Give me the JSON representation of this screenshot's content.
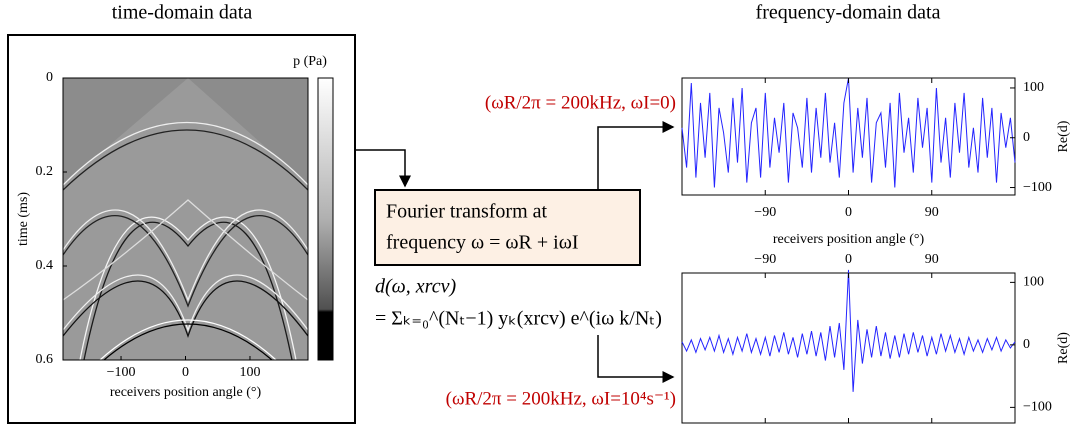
{
  "chart_data": [
    {
      "type": "image",
      "title": "time-domain data",
      "xlabel": "receivers position angle (°)",
      "ylabel": "time (ms)",
      "colorbar_label": "p (Pa)",
      "xlim": [
        -190,
        190
      ],
      "ylim": [
        0,
        0.6
      ],
      "xticks": [
        {
          "value": -100,
          "label": "−100"
        },
        0,
        100
      ],
      "yticks": [
        0,
        0.2,
        0.4,
        0.6
      ]
    },
    {
      "type": "line",
      "xlabel": "receivers position angle (°)",
      "ylabel": "Re(d)",
      "color": "#2424ff",
      "xlim": [
        -180,
        180
      ],
      "ylim": [
        -115,
        120
      ],
      "xtick_side": "bottom",
      "xticks": [
        {
          "value": -90,
          "label": "−90"
        },
        0,
        90
      ],
      "yticks": [
        {
          "value": -100,
          "label": "−100"
        },
        0,
        100
      ],
      "x": [
        -180,
        -175,
        -170,
        -165,
        -160,
        -155,
        -150,
        -145,
        -140,
        -135,
        -130,
        -125,
        -120,
        -115,
        -110,
        -105,
        -100,
        -95,
        -90,
        -85,
        -80,
        -75,
        -70,
        -65,
        -60,
        -55,
        -50,
        -45,
        -40,
        -35,
        -30,
        -25,
        -20,
        -15,
        -10,
        -5,
        0,
        5,
        10,
        15,
        20,
        25,
        30,
        35,
        40,
        45,
        50,
        55,
        60,
        65,
        70,
        75,
        80,
        85,
        90,
        95,
        100,
        105,
        110,
        115,
        120,
        125,
        130,
        135,
        140,
        145,
        150,
        155,
        160,
        165,
        170,
        175,
        180
      ],
      "values": [
        20,
        -60,
        110,
        -80,
        70,
        -40,
        90,
        -100,
        60,
        10,
        -70,
        80,
        -50,
        100,
        -90,
        30,
        60,
        -80,
        90,
        -60,
        40,
        -30,
        70,
        -90,
        50,
        20,
        -60,
        80,
        -70,
        60,
        -40,
        90,
        -50,
        30,
        -80,
        70,
        120,
        -70,
        60,
        -40,
        80,
        -90,
        30,
        50,
        -60,
        70,
        -100,
        90,
        -30,
        40,
        -70,
        80,
        -20,
        60,
        -90,
        100,
        -50,
        40,
        -80,
        70,
        -30,
        90,
        -60,
        20,
        -70,
        80,
        -40,
        60,
        -90,
        50,
        -20,
        40,
        -50
      ]
    },
    {
      "type": "line",
      "ylabel": "Re(d)",
      "color": "#2424ff",
      "xlim": [
        -180,
        180
      ],
      "ylim": [
        -125,
        115
      ],
      "xtick_side": "top",
      "xticks": [
        {
          "value": -90,
          "label": "−90"
        },
        0,
        90
      ],
      "yticks": [
        {
          "value": -100,
          "label": "−100"
        },
        0,
        100
      ],
      "x": [
        -180,
        -175,
        -170,
        -165,
        -160,
        -155,
        -150,
        -145,
        -140,
        -135,
        -130,
        -125,
        -120,
        -115,
        -110,
        -105,
        -100,
        -95,
        -90,
        -85,
        -80,
        -75,
        -70,
        -65,
        -60,
        -55,
        -50,
        -45,
        -40,
        -35,
        -30,
        -25,
        -20,
        -15,
        -10,
        -5,
        0,
        5,
        10,
        15,
        20,
        25,
        30,
        35,
        40,
        45,
        50,
        55,
        60,
        65,
        70,
        75,
        80,
        85,
        90,
        95,
        100,
        105,
        110,
        115,
        120,
        125,
        130,
        135,
        140,
        145,
        150,
        155,
        160,
        165,
        170,
        175,
        180
      ],
      "values": [
        5,
        -10,
        8,
        -12,
        10,
        -8,
        12,
        -10,
        15,
        -12,
        10,
        -15,
        12,
        -10,
        18,
        -12,
        10,
        -15,
        12,
        -18,
        15,
        -12,
        20,
        -15,
        12,
        -20,
        18,
        -15,
        22,
        -18,
        20,
        -25,
        30,
        -20,
        35,
        -40,
        120,
        -75,
        40,
        -30,
        25,
        -20,
        30,
        -18,
        20,
        -22,
        15,
        -20,
        18,
        -15,
        20,
        -12,
        15,
        -18,
        12,
        -15,
        18,
        -10,
        15,
        -12,
        10,
        -15,
        12,
        -10,
        8,
        -12,
        10,
        -8,
        12,
        -10,
        8,
        -5,
        5
      ]
    }
  ],
  "diagram": {
    "right_heading": "frequency-domain data",
    "transform_box": [
      "Fourier transform at",
      "frequency ω = ωR + iωI"
    ],
    "formula": [
      "d(ω, xrcv)",
      "= Σₖ₌₀^(Nₜ−1) yₖ(xrcv) e^(iω k/Nₜ)"
    ],
    "annotation_top": "(ωR/2π = 200kHz, ωI=0)",
    "annotation_bottom": "(ωR/2π = 200kHz, ωI=10⁴s⁻¹)"
  }
}
